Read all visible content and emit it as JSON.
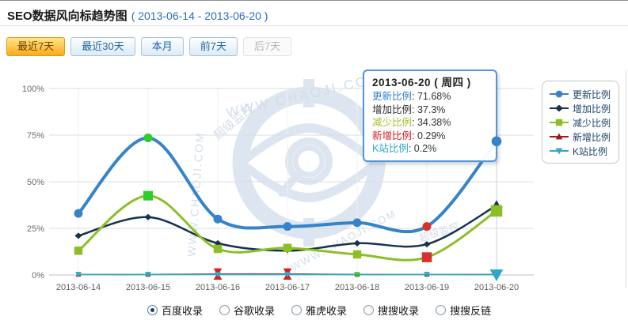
{
  "header": {
    "title": "SEO数据风向标趋势图",
    "date_range": "( 2013-06-14 - 2013-06-20 )"
  },
  "toolbar": {
    "buttons": [
      {
        "label": "最近7天",
        "state": "active"
      },
      {
        "label": "最近30天",
        "state": "normal"
      },
      {
        "label": "本月",
        "state": "normal"
      },
      {
        "label": "前7天",
        "state": "normal"
      },
      {
        "label": "后7天",
        "state": "disabled"
      }
    ]
  },
  "watermark": {
    "site": "WWW.CHAOJI.COM",
    "name": "超级监控",
    "name_short": "超级监"
  },
  "chart_data": {
    "type": "line",
    "x": [
      "2013-06-14",
      "2013-06-15",
      "2013-06-16",
      "2013-06-17",
      "2013-06-18",
      "2013-06-19",
      "2013-06-20"
    ],
    "yticks": [
      {
        "value": 0,
        "label": "0%"
      },
      {
        "value": 25,
        "label": "25%"
      },
      {
        "value": 50,
        "label": "50%"
      },
      {
        "value": 75,
        "label": "75%"
      },
      {
        "value": 100,
        "label": "100%"
      }
    ],
    "ylim": [
      0,
      100
    ],
    "grid": true,
    "legend_position": "right",
    "hover_index": 6,
    "series": [
      {
        "name": "更新比例",
        "color": "#3583c9",
        "marker": "circle",
        "values": [
          33,
          73.5,
          30,
          26,
          28,
          26,
          71.68
        ]
      },
      {
        "name": "增加比例",
        "color": "#17324e",
        "marker": "diamond",
        "values": [
          21,
          31,
          17,
          13,
          17,
          16.5,
          37.3
        ]
      },
      {
        "name": "减少比例",
        "color": "#8cbf26",
        "marker": "square",
        "values": [
          13,
          42.5,
          14,
          14.5,
          11,
          9.5,
          34.38
        ]
      },
      {
        "name": "新增比例",
        "color": "#9e1b1b",
        "marker": "triangle-up",
        "values": [
          0.3,
          0.3,
          0.5,
          0.5,
          0.3,
          0.3,
          0.29
        ]
      },
      {
        "name": "K站比例",
        "color": "#2fa8c8",
        "marker": "triangle-down",
        "values": [
          0.3,
          0.3,
          0.3,
          0.3,
          0.2,
          0.3,
          0.2
        ]
      }
    ],
    "point_overrides": [
      {
        "s": 0,
        "i": 1,
        "color": "#2ecc2e"
      },
      {
        "s": 0,
        "i": 5,
        "color": "#d8302f",
        "overlay": true
      },
      {
        "s": 0,
        "i": 6,
        "size": 1.15,
        "overlay": true
      },
      {
        "s": 1,
        "i": 3,
        "marker": "triangle-down",
        "color": "#c62828"
      },
      {
        "s": 1,
        "i": 6,
        "marker": "triangle-up",
        "size": 1.7,
        "overlay": true
      },
      {
        "s": 2,
        "i": 1,
        "color": "#2ecc2e",
        "size": 1.15
      },
      {
        "s": 2,
        "i": 5,
        "color": "#d8302f",
        "size": 1.2
      },
      {
        "s": 2,
        "i": 6,
        "size": 1.4,
        "overlay": true
      },
      {
        "s": 3,
        "i": 2,
        "marker": "hourglass",
        "color": "#dd1c1c",
        "size": 1.6
      },
      {
        "s": 3,
        "i": 3,
        "marker": "hourglass",
        "color": "#dd1c1c",
        "size": 1.6
      },
      {
        "s": 4,
        "i": 4,
        "color": "#2ecc2e"
      },
      {
        "s": 4,
        "i": 6,
        "size": 2.1
      }
    ]
  },
  "tooltip": {
    "title": "2013-06-20 ( 周四 )",
    "rows": [
      {
        "label": "更新比例",
        "value": "71.68%",
        "color": "#3583c9"
      },
      {
        "label": "增加比例",
        "value": "37.3%",
        "color": "#2b2b2b"
      },
      {
        "label": "减少比例",
        "value": "34.38%",
        "color": "#9dc62d"
      },
      {
        "label": "新增比例",
        "value": "0.29%",
        "color": "#cc2020"
      },
      {
        "label": "K站比例",
        "value": "0.2%",
        "color": "#2fa8c8"
      }
    ]
  },
  "radios": {
    "options": [
      {
        "label": "百度收录",
        "selected": true
      },
      {
        "label": "谷歌收录",
        "selected": false
      },
      {
        "label": "雅虎收录",
        "selected": false
      },
      {
        "label": "搜搜收录",
        "selected": false
      },
      {
        "label": "搜搜反链",
        "selected": false
      }
    ]
  }
}
